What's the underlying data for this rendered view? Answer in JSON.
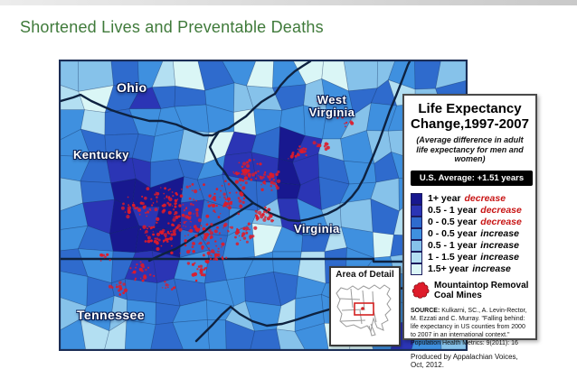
{
  "page": {
    "title": "Shortened Lives and Preventable Deaths"
  },
  "map": {
    "labels": {
      "ohio": "Ohio",
      "west_virginia": "West Virginia",
      "kentucky": "Kentucky",
      "virginia": "Virginia",
      "tennessee": "Tennessee"
    },
    "inset_title": "Area of Detail"
  },
  "legend": {
    "title_line1": "Life Expectancy",
    "title_line2": "Change,1997-2007",
    "subtitle": "(Average difference in adult life expectancy for men and women)",
    "us_average": "U.S. Average: +1.51 years",
    "items": [
      {
        "range": "1+ year",
        "trend": "decrease",
        "color": "#18188F"
      },
      {
        "range": "0.5 - 1 year",
        "trend": "decrease",
        "color": "#2B35B5"
      },
      {
        "range": "0 - 0.5 year",
        "trend": "decrease",
        "color": "#2F6BCD"
      },
      {
        "range": "0 - 0.5 year",
        "trend": "increase",
        "color": "#3F90DF"
      },
      {
        "range": "0.5 - 1 year",
        "trend": "increase",
        "color": "#86C2EA"
      },
      {
        "range": "1 - 1.5 year",
        "trend": "increase",
        "color": "#B3DFF2"
      },
      {
        "range": "1.5+ year",
        "trend": "increase",
        "color": "#DAF6F6"
      }
    ],
    "mines_label_line1": "Mountaintop Removal",
    "mines_label_line2": "Coal Mines",
    "source_label": "SOURCE:",
    "source_text": " Kulkarni, SC., A. Levin-Rector, M. Ezzati and C. Murray. \"Falling behind: life expectancy in US counties from 2000 to 2007 in an international context.\" Population Health Metrics: 9(2011): 16",
    "produced_by": "Produced by Appalachian Voices, Oct, 2012."
  },
  "colors": {
    "title_green": "#3f7a3a",
    "decrease_red": "#C81414",
    "mine_red": "#DE1B2A",
    "border_navy": "#0E2240"
  }
}
